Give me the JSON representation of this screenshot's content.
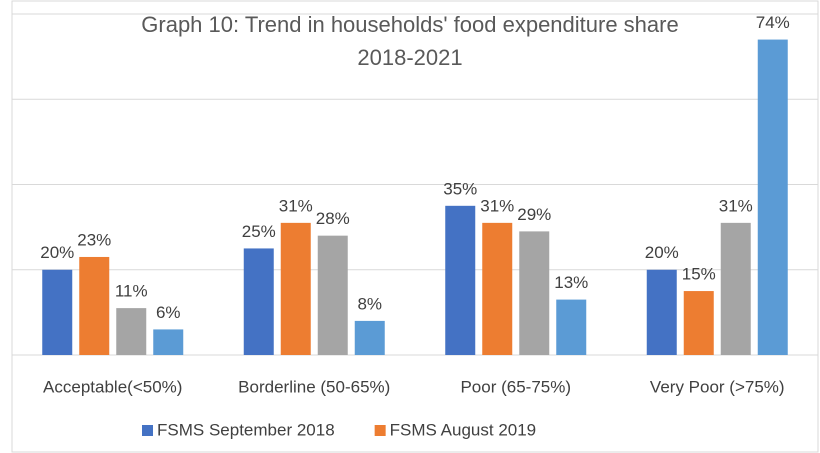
{
  "chart_data": {
    "type": "bar",
    "title": "Graph 10: Trend in households' food expenditure share 2018-2021",
    "categories": [
      "Acceptable(<50%)",
      "Borderline (50-65%)",
      "Poor (65-75%)",
      "Very Poor (>75%)"
    ],
    "series": [
      {
        "name": "FSMS September 2018",
        "color": "#4472c4",
        "values": [
          20,
          25,
          35,
          20
        ],
        "value_labels": [
          "20%",
          "25%",
          "35%",
          "20%"
        ]
      },
      {
        "name": "FSMS August 2019",
        "color": "#ed7d31",
        "values": [
          23,
          31,
          31,
          15
        ],
        "value_labels": [
          "23%",
          "31%",
          "31%",
          "15%"
        ]
      },
      {
        "color": "#a5a5a5",
        "values": [
          11,
          28,
          29,
          31
        ],
        "value_labels": [
          "11%",
          "28%",
          "29%",
          "31%"
        ]
      },
      {
        "color": "#5b9bd5",
        "values": [
          6,
          8,
          13,
          74
        ],
        "value_labels": [
          "6%",
          "8%",
          "13%",
          "74%"
        ]
      }
    ],
    "ylim": [
      0,
      80
    ],
    "yticks": [
      0,
      20,
      40,
      60,
      80
    ],
    "grid": true,
    "legend": "bottom"
  }
}
